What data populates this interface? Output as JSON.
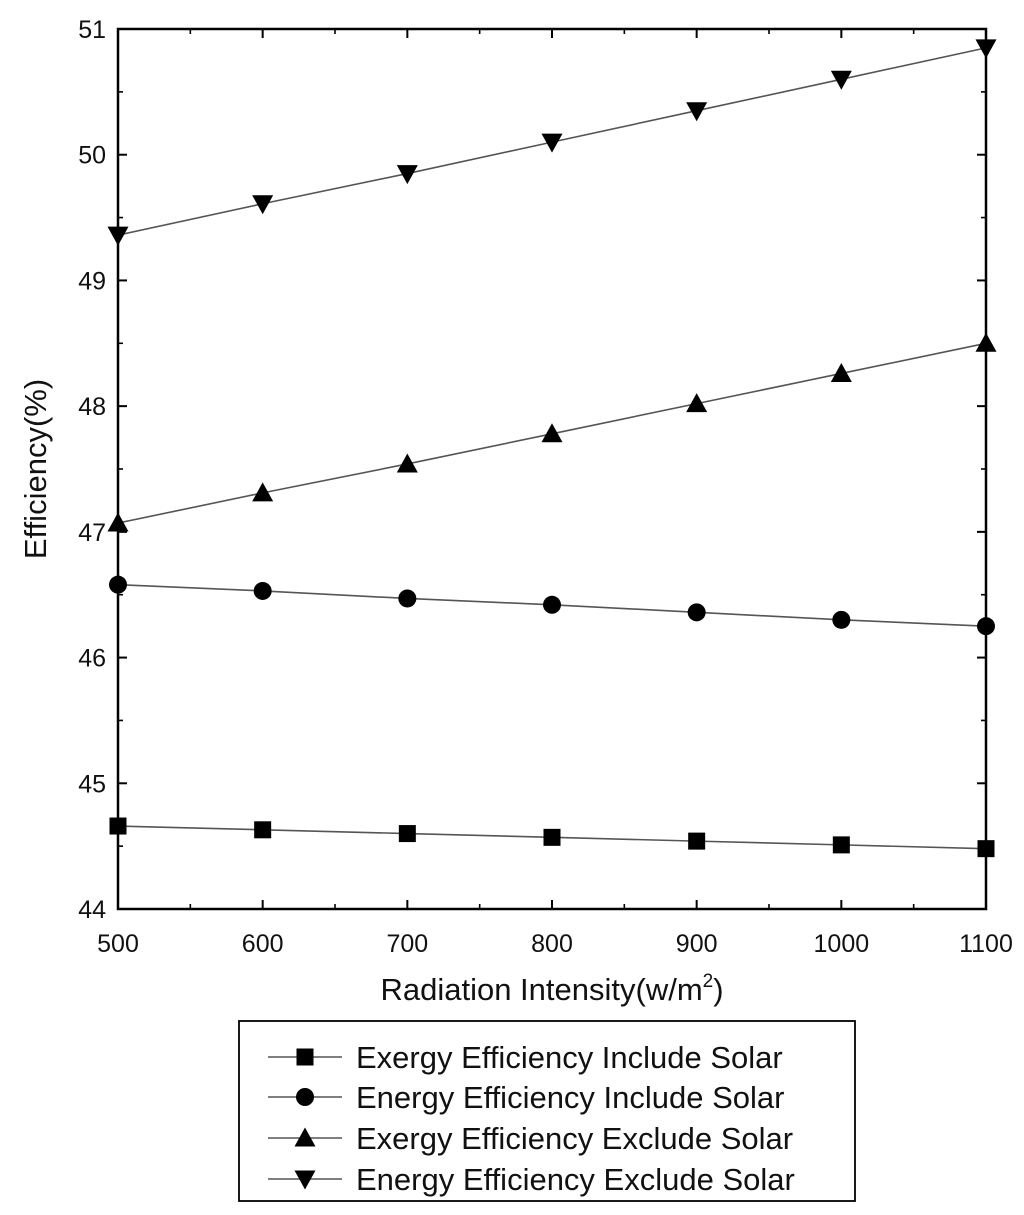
{
  "chart_data": {
    "type": "line",
    "title": "",
    "xlabel_prefix": "Radiation Intensity(w/m",
    "xlabel_sup": "2",
    "xlabel_suffix": ")",
    "ylabel": "Efficiency(%)",
    "xlim": [
      500,
      1100
    ],
    "ylim": [
      44,
      51
    ],
    "xticks": [
      500,
      600,
      700,
      800,
      900,
      1000,
      1100
    ],
    "yticks": [
      44,
      45,
      46,
      47,
      48,
      49,
      50,
      51
    ],
    "grid": false,
    "legend_position": "bottom",
    "x": [
      500,
      600,
      700,
      800,
      900,
      1000,
      1100
    ],
    "series": [
      {
        "name": "Exergy Efficiency Include Solar",
        "marker": "square",
        "values": [
          44.66,
          44.63,
          44.6,
          44.57,
          44.54,
          44.51,
          44.48
        ]
      },
      {
        "name": "Energy Efficiency Include Solar",
        "marker": "circle",
        "values": [
          46.58,
          46.53,
          46.47,
          46.42,
          46.36,
          46.3,
          46.25
        ]
      },
      {
        "name": "Exergy Efficiency Exclude Solar",
        "marker": "triangle-up",
        "values": [
          47.07,
          47.31,
          47.54,
          47.78,
          48.02,
          48.26,
          48.5
        ]
      },
      {
        "name": "Energy Efficiency Exclude Solar",
        "marker": "triangle-down",
        "values": [
          49.36,
          49.61,
          49.85,
          50.1,
          50.35,
          50.6,
          50.85
        ]
      }
    ]
  }
}
